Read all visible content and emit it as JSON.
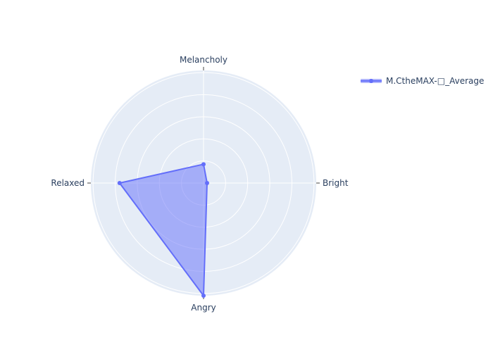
{
  "chart_data": {
    "type": "radar",
    "categories": [
      "Bright",
      "Melancholy",
      "Relaxed",
      "Angry"
    ],
    "series": [
      {
        "name": "M.CtheMAX-□_Average",
        "values": [
          0.016,
          0.085,
          0.38,
          0.51
        ]
      }
    ],
    "rrange": [
      0,
      0.51
    ],
    "grid": true,
    "legend": "top-right",
    "colors": {
      "series": "#636efa",
      "fill": "rgba(99,110,250,0.5)",
      "polar_bg": "#e5ecf6",
      "grid": "#ffffff",
      "text": "#2a3f5f"
    }
  }
}
